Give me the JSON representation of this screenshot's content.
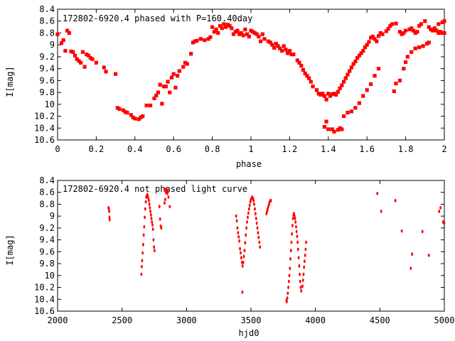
{
  "chart_data": [
    {
      "type": "scatter",
      "title": "172802-6920.4 phased with P=160.40day",
      "xlabel": "phase",
      "ylabel": "I[mag]",
      "xlim": [
        0,
        2
      ],
      "ylim": [
        10.6,
        8.4
      ],
      "y_inverted": true,
      "grid": false,
      "marker_color": "#ff0000",
      "xticks": [
        "0",
        "0.2",
        "0.4",
        "0.6",
        "0.8",
        "1",
        "1.2",
        "1.4",
        "1.6",
        "1.8",
        "2"
      ],
      "yticks": [
        "8.4",
        "8.6",
        "8.8",
        "9",
        "9.2",
        "9.4",
        "9.6",
        "9.8",
        "10",
        "10.2",
        "10.4",
        "10.6"
      ],
      "points": [
        [
          0.0,
          8.82
        ],
        [
          0.02,
          8.97
        ],
        [
          0.03,
          8.92
        ],
        [
          0.04,
          9.1
        ],
        [
          0.05,
          8.76
        ],
        [
          0.06,
          8.8
        ],
        [
          0.07,
          9.11
        ],
        [
          0.08,
          9.12
        ],
        [
          0.09,
          9.18
        ],
        [
          0.1,
          9.24
        ],
        [
          0.11,
          9.27
        ],
        [
          0.12,
          9.3
        ],
        [
          0.13,
          9.12
        ],
        [
          0.14,
          9.37
        ],
        [
          0.15,
          9.16
        ],
        [
          0.16,
          9.18
        ],
        [
          0.17,
          9.22
        ],
        [
          0.18,
          9.24
        ],
        [
          0.2,
          9.3
        ],
        [
          0.24,
          9.38
        ],
        [
          0.25,
          9.45
        ],
        [
          0.3,
          9.49
        ],
        [
          0.31,
          10.06
        ],
        [
          0.32,
          10.08
        ],
        [
          0.34,
          10.1
        ],
        [
          0.35,
          10.13
        ],
        [
          0.36,
          10.14
        ],
        [
          0.38,
          10.18
        ],
        [
          0.39,
          10.22
        ],
        [
          0.4,
          10.24
        ],
        [
          0.42,
          10.25
        ],
        [
          0.43,
          10.22
        ],
        [
          0.44,
          10.2
        ],
        [
          0.46,
          10.02
        ],
        [
          0.48,
          10.02
        ],
        [
          0.5,
          9.9
        ],
        [
          0.51,
          9.85
        ],
        [
          0.52,
          9.8
        ],
        [
          0.53,
          9.67
        ],
        [
          0.54,
          9.99
        ],
        [
          0.55,
          9.7
        ],
        [
          0.56,
          9.7
        ],
        [
          0.57,
          9.62
        ],
        [
          0.58,
          9.8
        ],
        [
          0.59,
          9.55
        ],
        [
          0.6,
          9.49
        ],
        [
          0.61,
          9.72
        ],
        [
          0.62,
          9.52
        ],
        [
          0.63,
          9.44
        ],
        [
          0.65,
          9.37
        ],
        [
          0.66,
          9.3
        ],
        [
          0.67,
          9.32
        ],
        [
          0.69,
          9.15
        ],
        [
          0.7,
          8.96
        ],
        [
          0.71,
          8.94
        ],
        [
          0.72,
          8.93
        ],
        [
          0.74,
          8.9
        ],
        [
          0.76,
          8.92
        ],
        [
          0.78,
          8.9
        ],
        [
          0.79,
          8.87
        ],
        [
          0.8,
          8.7
        ],
        [
          0.81,
          8.78
        ],
        [
          0.82,
          8.74
        ],
        [
          0.83,
          8.8
        ],
        [
          0.84,
          8.68
        ],
        [
          0.85,
          8.72
        ],
        [
          0.86,
          8.65
        ],
        [
          0.87,
          8.7
        ],
        [
          0.88,
          8.66
        ],
        [
          0.89,
          8.68
        ],
        [
          0.9,
          8.72
        ],
        [
          0.91,
          8.82
        ],
        [
          0.92,
          8.78
        ],
        [
          0.93,
          8.76
        ],
        [
          0.94,
          8.82
        ],
        [
          0.95,
          8.8
        ],
        [
          0.96,
          8.84
        ],
        [
          0.97,
          8.74
        ],
        [
          0.98,
          8.82
        ],
        [
          0.99,
          8.86
        ],
        [
          1.0,
          8.76
        ],
        [
          1.01,
          8.78
        ],
        [
          1.02,
          8.8
        ],
        [
          1.03,
          8.82
        ],
        [
          1.04,
          8.86
        ],
        [
          1.05,
          8.94
        ],
        [
          1.06,
          8.82
        ],
        [
          1.07,
          8.9
        ],
        [
          1.09,
          8.94
        ],
        [
          1.1,
          8.96
        ],
        [
          1.11,
          9.0
        ],
        [
          1.12,
          9.05
        ],
        [
          1.13,
          8.98
        ],
        [
          1.14,
          9.02
        ],
        [
          1.15,
          9.06
        ],
        [
          1.16,
          9.1
        ],
        [
          1.17,
          9.02
        ],
        [
          1.18,
          9.08
        ],
        [
          1.19,
          9.14
        ],
        [
          1.2,
          9.1
        ],
        [
          1.21,
          9.16
        ],
        [
          1.22,
          9.16
        ],
        [
          1.24,
          9.26
        ],
        [
          1.25,
          9.3
        ],
        [
          1.26,
          9.35
        ],
        [
          1.27,
          9.42
        ],
        [
          1.28,
          9.48
        ],
        [
          1.29,
          9.52
        ],
        [
          1.3,
          9.56
        ],
        [
          1.31,
          9.62
        ],
        [
          1.32,
          9.7
        ],
        [
          1.34,
          9.76
        ],
        [
          1.35,
          9.82
        ],
        [
          1.36,
          9.84
        ],
        [
          1.37,
          9.82
        ],
        [
          1.38,
          9.86
        ],
        [
          1.39,
          9.92
        ],
        [
          1.4,
          9.82
        ],
        [
          1.41,
          9.86
        ],
        [
          1.42,
          9.83
        ],
        [
          1.43,
          9.82
        ],
        [
          1.44,
          9.84
        ],
        [
          1.45,
          9.79
        ],
        [
          1.46,
          9.73
        ],
        [
          1.47,
          9.68
        ],
        [
          1.48,
          9.62
        ],
        [
          1.49,
          9.56
        ],
        [
          1.5,
          9.5
        ],
        [
          1.51,
          9.44
        ],
        [
          1.52,
          9.38
        ],
        [
          1.53,
          9.32
        ],
        [
          1.54,
          9.28
        ],
        [
          1.55,
          9.22
        ],
        [
          1.56,
          9.18
        ],
        [
          1.57,
          9.14
        ],
        [
          1.58,
          9.1
        ],
        [
          1.59,
          9.04
        ],
        [
          1.6,
          9.0
        ],
        [
          1.61,
          8.95
        ],
        [
          1.62,
          8.88
        ],
        [
          1.63,
          8.86
        ],
        [
          1.64,
          8.9
        ],
        [
          1.65,
          8.94
        ],
        [
          1.66,
          8.85
        ],
        [
          1.67,
          8.8
        ],
        [
          1.68,
          8.82
        ],
        [
          1.7,
          8.77
        ],
        [
          1.71,
          8.73
        ],
        [
          1.72,
          8.68
        ],
        [
          1.73,
          8.65
        ],
        [
          1.75,
          8.64
        ],
        [
          1.77,
          8.78
        ],
        [
          1.78,
          8.82
        ],
        [
          1.79,
          8.8
        ],
        [
          1.8,
          8.76
        ],
        [
          1.82,
          8.74
        ],
        [
          1.83,
          8.72
        ],
        [
          1.84,
          8.76
        ],
        [
          1.85,
          8.8
        ],
        [
          1.86,
          8.78
        ],
        [
          1.87,
          8.68
        ],
        [
          1.88,
          8.65
        ],
        [
          1.9,
          8.6
        ],
        [
          1.92,
          8.7
        ],
        [
          1.93,
          8.74
        ],
        [
          1.94,
          8.76
        ],
        [
          1.95,
          8.74
        ],
        [
          1.96,
          8.76
        ],
        [
          1.97,
          8.8
        ],
        [
          1.98,
          8.78
        ],
        [
          1.99,
          8.8
        ],
        [
          2.0,
          8.8
        ],
        [
          1.38,
          10.38
        ],
        [
          1.39,
          10.29
        ],
        [
          1.4,
          10.42
        ],
        [
          1.42,
          10.42
        ],
        [
          1.43,
          10.46
        ],
        [
          1.45,
          10.43
        ],
        [
          1.46,
          10.4
        ],
        [
          1.47,
          10.42
        ],
        [
          1.48,
          10.2
        ],
        [
          1.5,
          10.14
        ],
        [
          1.52,
          10.12
        ],
        [
          1.54,
          10.06
        ],
        [
          1.56,
          9.98
        ],
        [
          1.58,
          9.86
        ],
        [
          1.6,
          9.76
        ],
        [
          1.62,
          9.66
        ],
        [
          1.64,
          9.52
        ],
        [
          1.66,
          9.4
        ],
        [
          1.74,
          9.78
        ],
        [
          1.75,
          9.65
        ],
        [
          1.77,
          9.6
        ],
        [
          1.79,
          9.4
        ],
        [
          1.8,
          9.29
        ],
        [
          1.81,
          9.2
        ],
        [
          1.83,
          9.12
        ],
        [
          1.85,
          9.06
        ],
        [
          1.87,
          9.04
        ],
        [
          1.89,
          9.02
        ],
        [
          1.91,
          8.98
        ],
        [
          1.92,
          8.96
        ],
        [
          1.95,
          8.72
        ],
        [
          1.97,
          8.65
        ],
        [
          1.99,
          8.62
        ],
        [
          2.0,
          8.6
        ]
      ]
    },
    {
      "type": "scatter",
      "title": "172802-6920.4 not phased light curve",
      "xlabel": "hjd0",
      "ylabel": "I[mag]",
      "xlim": [
        2000,
        5000
      ],
      "ylim": [
        10.6,
        8.4
      ],
      "y_inverted": true,
      "grid": false,
      "marker_color": "#ff0000",
      "xticks": [
        "2000",
        "2500",
        "3000",
        "3500",
        "4000",
        "4500",
        "5000"
      ],
      "yticks": [
        "8.4",
        "8.6",
        "8.8",
        "9",
        "9.2",
        "9.4",
        "9.6",
        "9.8",
        "10",
        "10.2",
        "10.4",
        "10.6"
      ],
      "points": [
        [
          2395,
          8.86
        ],
        [
          2398,
          8.88
        ],
        [
          2400,
          8.92
        ],
        [
          2402,
          9.02
        ],
        [
          2404,
          9.06
        ],
        [
          2650,
          9.98
        ],
        [
          2653,
          9.85
        ],
        [
          2656,
          9.75
        ],
        [
          2660,
          9.62
        ],
        [
          2664,
          9.48
        ],
        [
          2668,
          9.32
        ],
        [
          2672,
          9.18
        ],
        [
          2676,
          9.02
        ],
        [
          2680,
          8.88
        ],
        [
          2684,
          8.76
        ],
        [
          2688,
          8.68
        ],
        [
          2692,
          8.66
        ],
        [
          2696,
          8.64
        ],
        [
          2700,
          8.66
        ],
        [
          2704,
          8.7
        ],
        [
          2708,
          8.74
        ],
        [
          2712,
          8.8
        ],
        [
          2716,
          8.86
        ],
        [
          2720,
          8.92
        ],
        [
          2724,
          8.98
        ],
        [
          2728,
          9.04
        ],
        [
          2732,
          9.1
        ],
        [
          2736,
          9.15
        ],
        [
          2740,
          9.22
        ],
        [
          2744,
          9.4
        ],
        [
          2748,
          9.52
        ],
        [
          2752,
          9.58
        ],
        [
          2790,
          8.84
        ],
        [
          2795,
          9.05
        ],
        [
          2800,
          9.17
        ],
        [
          2805,
          9.2
        ],
        [
          2830,
          8.78
        ],
        [
          2835,
          8.72
        ],
        [
          2840,
          8.6
        ],
        [
          2845,
          8.56
        ],
        [
          2850,
          8.56
        ],
        [
          2855,
          8.6
        ],
        [
          2860,
          8.68
        ],
        [
          2870,
          8.84
        ],
        [
          2830,
          8.55
        ],
        [
          2840,
          8.55
        ],
        [
          2850,
          8.62
        ],
        [
          3385,
          9.0
        ],
        [
          3390,
          9.08
        ],
        [
          3395,
          9.2
        ],
        [
          3400,
          9.28
        ],
        [
          3405,
          9.35
        ],
        [
          3410,
          9.42
        ],
        [
          3415,
          9.55
        ],
        [
          3420,
          9.62
        ],
        [
          3425,
          9.7
        ],
        [
          3430,
          9.78
        ],
        [
          3435,
          9.84
        ],
        [
          3440,
          9.78
        ],
        [
          3445,
          9.68
        ],
        [
          3450,
          9.58
        ],
        [
          3455,
          9.45
        ],
        [
          3460,
          9.32
        ],
        [
          3465,
          9.2
        ],
        [
          3470,
          9.1
        ],
        [
          3475,
          9.02
        ],
        [
          3480,
          8.95
        ],
        [
          3485,
          8.88
        ],
        [
          3490,
          8.82
        ],
        [
          3495,
          8.76
        ],
        [
          3500,
          8.72
        ],
        [
          3505,
          8.7
        ],
        [
          3510,
          8.68
        ],
        [
          3515,
          8.7
        ],
        [
          3520,
          8.74
        ],
        [
          3525,
          8.8
        ],
        [
          3530,
          8.88
        ],
        [
          3535,
          8.96
        ],
        [
          3540,
          9.04
        ],
        [
          3545,
          9.12
        ],
        [
          3550,
          9.2
        ],
        [
          3555,
          9.28
        ],
        [
          3560,
          9.36
        ],
        [
          3565,
          9.44
        ],
        [
          3570,
          9.52
        ],
        [
          3433,
          10.28
        ],
        [
          3620,
          8.96
        ],
        [
          3625,
          8.92
        ],
        [
          3630,
          8.88
        ],
        [
          3635,
          8.84
        ],
        [
          3640,
          8.8
        ],
        [
          3645,
          8.76
        ],
        [
          3650,
          8.74
        ],
        [
          3655,
          8.74
        ],
        [
          3775,
          10.42
        ],
        [
          3778,
          10.44
        ],
        [
          3782,
          10.38
        ],
        [
          3786,
          10.3
        ],
        [
          3790,
          10.2
        ],
        [
          3794,
          10.1
        ],
        [
          3798,
          10.0
        ],
        [
          3802,
          9.88
        ],
        [
          3806,
          9.72
        ],
        [
          3810,
          9.58
        ],
        [
          3814,
          9.44
        ],
        [
          3818,
          9.3
        ],
        [
          3822,
          9.16
        ],
        [
          3826,
          9.04
        ],
        [
          3830,
          8.98
        ],
        [
          3834,
          8.96
        ],
        [
          3838,
          9.0
        ],
        [
          3842,
          9.04
        ],
        [
          3846,
          9.1
        ],
        [
          3850,
          9.18
        ],
        [
          3854,
          9.26
        ],
        [
          3858,
          9.34
        ],
        [
          3862,
          9.44
        ],
        [
          3866,
          9.56
        ],
        [
          3870,
          9.7
        ],
        [
          3874,
          9.84
        ],
        [
          3878,
          9.98
        ],
        [
          3882,
          10.1
        ],
        [
          3886,
          10.2
        ],
        [
          3890,
          10.26
        ],
        [
          3900,
          10.18
        ],
        [
          3904,
          10.08
        ],
        [
          3908,
          9.98
        ],
        [
          3912,
          9.86
        ],
        [
          3916,
          9.76
        ],
        [
          3920,
          9.66
        ],
        [
          3924,
          9.56
        ],
        [
          3928,
          9.44
        ],
        [
          4480,
          8.62
        ],
        [
          4510,
          8.92
        ],
        [
          4620,
          8.74
        ],
        [
          4670,
          9.25
        ],
        [
          4740,
          9.88
        ],
        [
          4750,
          9.64
        ],
        [
          4830,
          9.26
        ],
        [
          4880,
          9.66
        ],
        [
          4960,
          8.92
        ],
        [
          4970,
          8.86
        ],
        [
          4990,
          9.1
        ],
        [
          5000,
          9.12
        ]
      ]
    }
  ]
}
